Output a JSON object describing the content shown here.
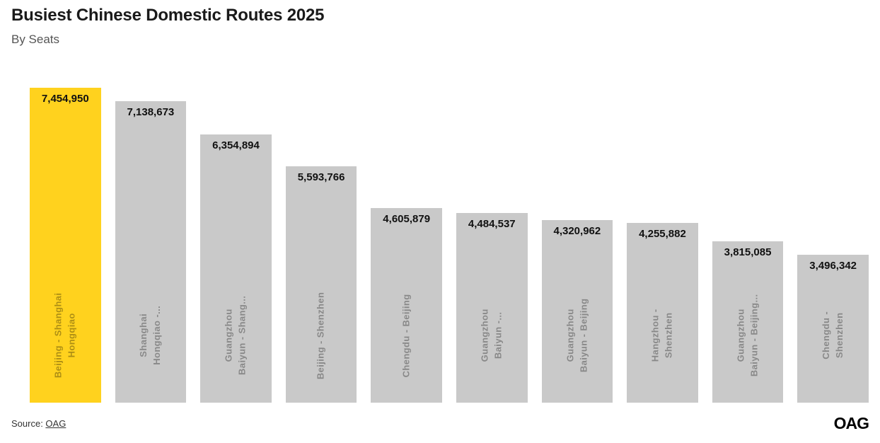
{
  "header": {
    "title": "Busiest Chinese Domestic Routes 2025",
    "subtitle": "By Seats"
  },
  "chart_data": {
    "type": "bar",
    "orientation": "vertical",
    "title": "Busiest Chinese Domestic Routes 2025",
    "subtitle": "By Seats",
    "unit": "seats",
    "categories": [
      "Beijing - Shanghai\nHongqiao",
      "Shanghai\nHongqiao -...",
      "Guangzhou\nBaiyun - Shang...",
      "Beijing - Shenzhen",
      "Chengdu - Beijing",
      "Guangzhou\nBaiyun -...",
      "Guangzhou\nBaiyun - Beijing",
      "Hangzhou -\nShenzhen",
      "Guangzhou\nBaiyun - Beijing...",
      "Chengdu -\nShenzhen"
    ],
    "values": [
      7454950,
      7138673,
      6354894,
      5593766,
      4605879,
      4484537,
      4320962,
      4255882,
      3815085,
      3496342
    ],
    "value_labels": [
      "7,454,950",
      "7,138,673",
      "6,354,894",
      "5,593,766",
      "4,605,879",
      "4,484,537",
      "4,320,962",
      "4,255,882",
      "3,815,085",
      "3,496,342"
    ],
    "highlighted_index": 0,
    "ylim": [
      0,
      7454950
    ],
    "grid": false,
    "legend": false
  },
  "colors": {
    "highlight_bar": "#FFD21E",
    "bar": "#C9C9C9",
    "value_label": "#111111",
    "category_label": "rgba(0,0,0,0.32)",
    "title": "#1A1A1A",
    "subtitle": "#555555"
  },
  "footer": {
    "source_prefix": "Source: ",
    "source_link_label": "OAG",
    "logo_text": "OAG"
  }
}
